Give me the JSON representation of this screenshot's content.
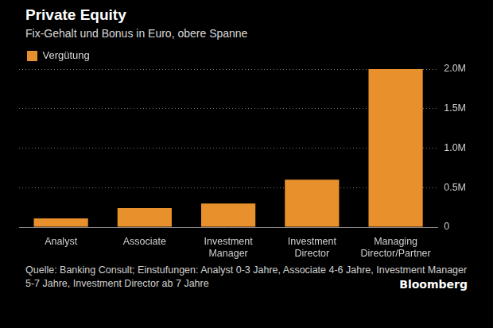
{
  "chart_data": {
    "type": "bar",
    "title": "Private Equity",
    "subtitle": "Fix-Gehalt und Bonus in Euro, obere Spanne",
    "categories": [
      "Analyst",
      "Associate",
      "Investment Manager",
      "Investment Director",
      "Managing Director/Partner"
    ],
    "series": [
      {
        "name": "Vergütung",
        "color": "#e8912c",
        "values": [
          110000,
          240000,
          300000,
          600000,
          2000000
        ]
      }
    ],
    "ylim": [
      0,
      2000000
    ],
    "yticks": [
      0,
      {
        "value": 500000,
        "label": "0.5M"
      },
      {
        "value": 1000000,
        "label": "1.0M"
      },
      {
        "value": 1500000,
        "label": "1.5M"
      },
      {
        "value": 2000000,
        "label": "2.0M"
      }
    ],
    "grid": true,
    "legend": "top-left",
    "note": "Quelle: Banking Consult; Einstufungen: Analyst 0-3 Jahre, Associate 4-6 Jahre, Investment Manager 5-7 Jahre, Investment Director ab 7 Jahre",
    "credit": "Bloomberg"
  }
}
